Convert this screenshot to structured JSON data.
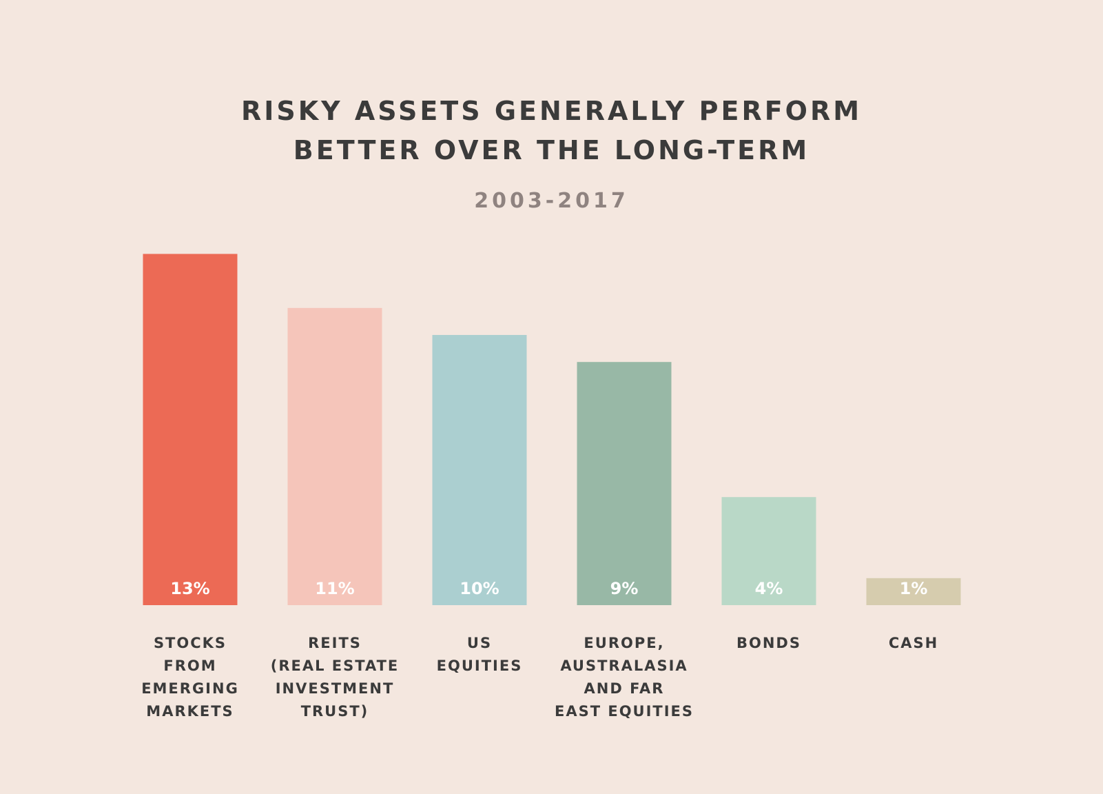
{
  "title_line_1": "RISKY ASSETS GENERALLY PERFORM",
  "title_line_2": "BETTER OVER THE LONG-TERM",
  "subtitle": "2003-2017",
  "chart_data": {
    "type": "bar",
    "title": "RISKY ASSETS GENERALLY PERFORM BETTER OVER THE LONG-TERM",
    "subtitle": "2003-2017",
    "categories": [
      "STOCKS FROM EMERGING MARKETS",
      "REITS (REAL ESTATE INVESTMENT TRUST)",
      "US EQUITIES",
      "EUROPE, AUSTRALASIA AND FAR EAST EQUITIES",
      "BONDS",
      "CASH"
    ],
    "category_label_lines": [
      [
        "STOCKS",
        "FROM",
        "EMERGING",
        "MARKETS"
      ],
      [
        "REITS",
        "(REAL ESTATE",
        "INVESTMENT",
        "TRUST)"
      ],
      [
        "US",
        "EQUITIES"
      ],
      [
        "EUROPE,",
        "AUSTRALASIA",
        "AND FAR",
        "EAST EQUITIES"
      ],
      [
        "BONDS"
      ],
      [
        "CASH"
      ]
    ],
    "values": [
      13,
      11,
      10,
      9,
      4,
      1
    ],
    "value_labels": [
      "13%",
      "11%",
      "10%",
      "9%",
      "4%",
      "1%"
    ],
    "colors": [
      "#ec6a55",
      "#f5c5ba",
      "#abcfd0",
      "#98b8a6",
      "#b9d8c7",
      "#d6ccae"
    ],
    "unit": "%",
    "xlabel": "",
    "ylabel": "",
    "grid": false,
    "axes_visible": false
  }
}
